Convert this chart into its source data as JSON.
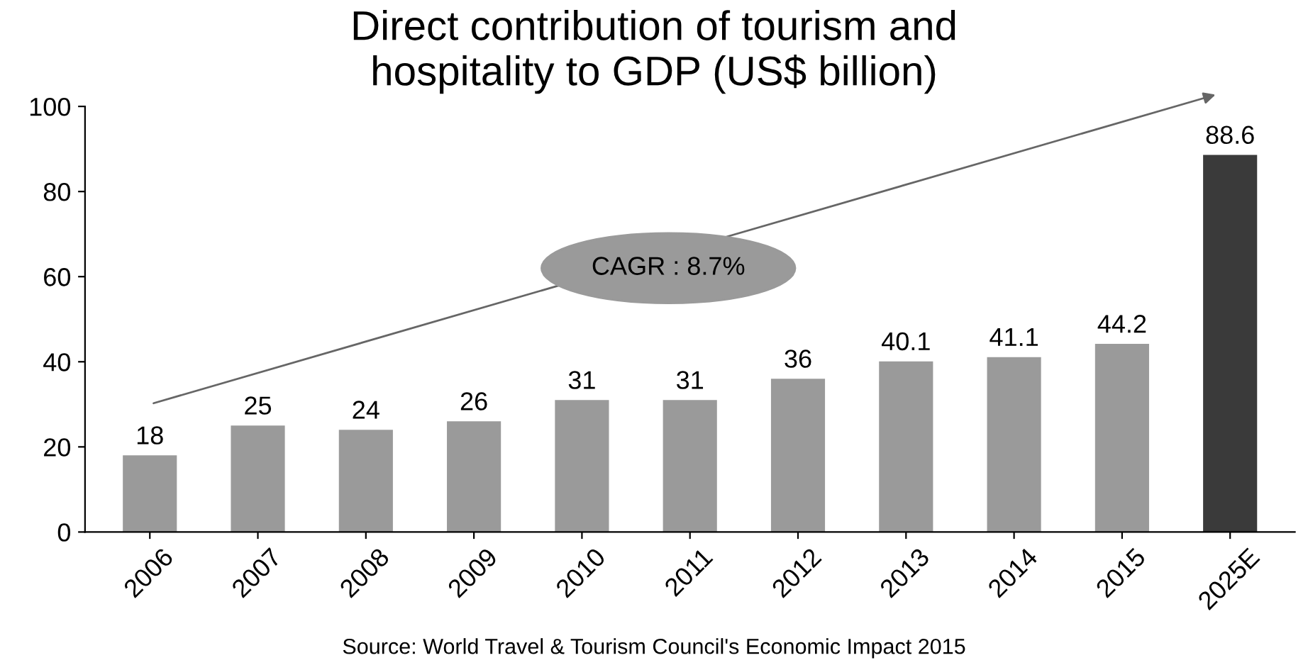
{
  "chart_data": {
    "type": "bar",
    "title": "Direct contribution of tourism and\nhospitality to GDP (US$ billion)",
    "categories": [
      "2006",
      "2007",
      "2008",
      "2009",
      "2010",
      "2011",
      "2012",
      "2013",
      "2014",
      "2015",
      "2025E"
    ],
    "values": [
      18,
      25,
      24,
      26,
      31,
      31,
      36,
      40.1,
      41.1,
      44.2,
      88.6
    ],
    "colors": [
      "#9a9a9a",
      "#9a9a9a",
      "#9a9a9a",
      "#9a9a9a",
      "#9a9a9a",
      "#9a9a9a",
      "#9a9a9a",
      "#9a9a9a",
      "#9a9a9a",
      "#9a9a9a",
      "#3a3a3a"
    ],
    "data_labels": true,
    "ylim": [
      0,
      100
    ],
    "yticks": [
      0,
      20,
      40,
      60,
      80,
      100
    ],
    "grid": false,
    "legend": false,
    "annotations": [
      "CAGR : 8.7%",
      "Source: World Travel & Tourism Council's Economic Impact 2015"
    ]
  }
}
